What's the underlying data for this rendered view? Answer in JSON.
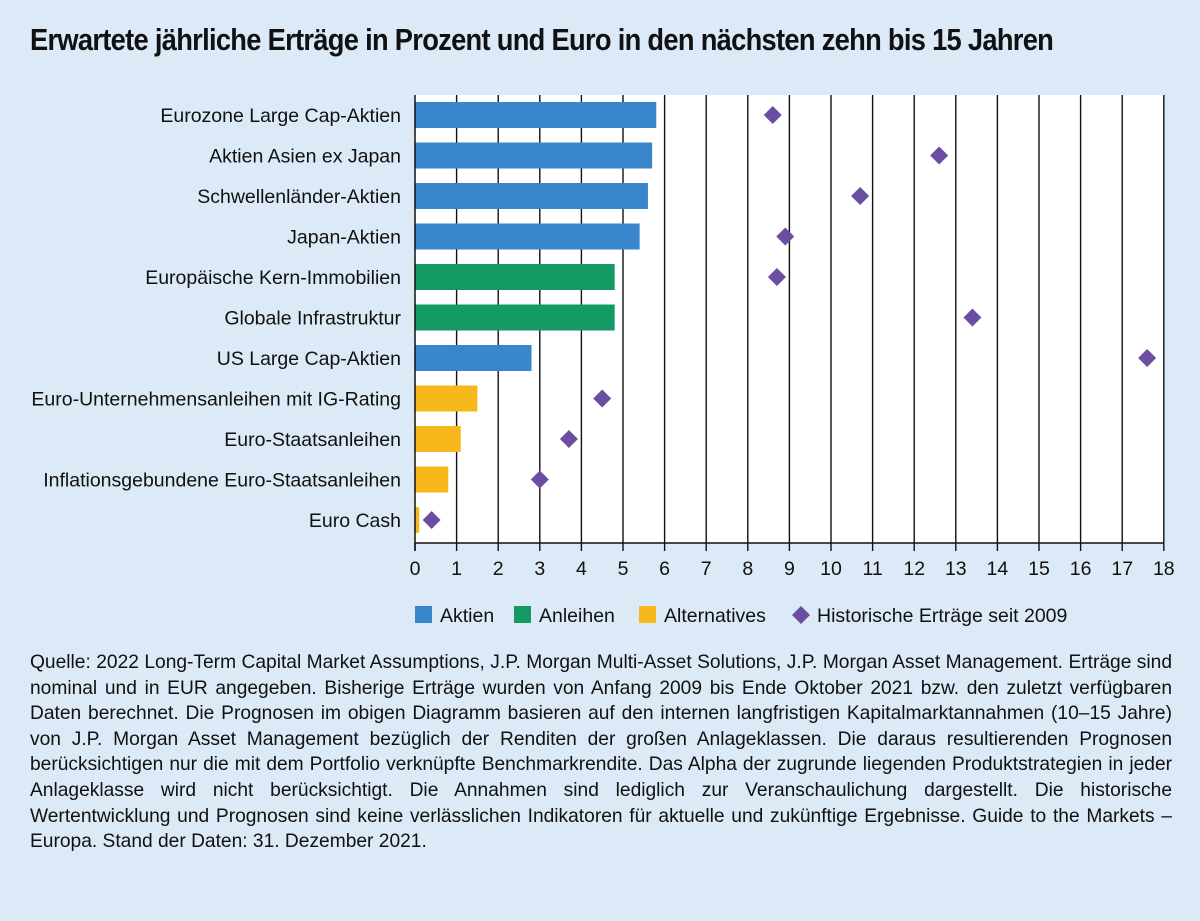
{
  "title": "Erwartete jährliche Erträge in Prozent und Euro in den nächsten zehn bis 15 Jahren",
  "note": "Quelle: 2022 Long-Term Capital Market Assumptions, J.P. Morgan Multi-Asset Solutions, J.P. Morgan Asset Management. Erträge sind nominal und in EUR angegeben. Bisherige Erträge wurden von Anfang 2009 bis Ende Oktober 2021 bzw. den zuletzt verfügbaren Daten berechnet. Die Prognosen im obigen Diagramm basieren auf den internen langfristigen Kapitalmarktannahmen (10–15 Jahre) von J.P. Morgan Asset Management bezüglich der Renditen der großen Anlageklassen. Die daraus resultierenden Prognosen berücksichtigen nur die mit dem Portfolio verknüpfte Benchmarkrendite. Das Alpha der zugrunde liegenden Produktstrategien in jeder Anlageklasse wird nicht berücksichtigt. Die Annahmen sind lediglich zur Veranschaulichung dargestellt. Die historische Wertentwicklung und Prognosen sind keine verlässlichen Indikatoren für aktuelle und zukünftige Ergebnisse. Guide to the Markets – Europa. Stand der Daten: 31. Dezember 2021.",
  "colors": {
    "background": "#dce9f6",
    "aktien": "#3a86cc",
    "anleihen": "#139a64",
    "alternatives": "#f7b81c",
    "historisch": "#6b4ea2"
  },
  "chart_data": {
    "type": "bar",
    "orientation": "horizontal",
    "title": "Erwartete jährliche Erträge in Prozent und Euro in den nächsten zehn bis 15 Jahren",
    "categories": [
      "Eurozone Large Cap-Aktien",
      "Aktien Asien ex Japan",
      "Schwellenländer-Aktien",
      "Japan-Aktien",
      "Europäische Kern-Immobilien",
      "Globale Infrastruktur",
      "US Large Cap-Aktien",
      "Euro-Unternehmensanleihen mit IG-Rating",
      "Euro-Staatsanleihen",
      "Inflationsgebundene Euro-Staatsanleihen",
      "Euro Cash"
    ],
    "values": [
      5.8,
      5.7,
      5.6,
      5.4,
      4.8,
      4.8,
      2.8,
      1.5,
      1.1,
      0.8,
      0.1
    ],
    "bar_groups": [
      "Aktien",
      "Aktien",
      "Aktien",
      "Aktien",
      "Anleihen",
      "Anleihen",
      "Aktien",
      "Alternatives",
      "Alternatives",
      "Alternatives",
      "Alternatives"
    ],
    "historical": [
      8.6,
      12.6,
      10.7,
      8.9,
      8.7,
      13.4,
      17.6,
      4.5,
      3.7,
      3.0,
      0.4
    ],
    "legend": [
      "Aktien",
      "Anleihen",
      "Alternatives",
      "Historische Erträge seit 2009"
    ],
    "xlim": [
      0,
      18
    ],
    "xticks": [
      "0",
      "1",
      "2",
      "3",
      "4",
      "5",
      "6",
      "7",
      "8",
      "9",
      "10",
      "11",
      "12",
      "13",
      "14",
      "15",
      "16",
      "17",
      "18"
    ],
    "grid": "vertical",
    "legend_position": "bottom"
  }
}
